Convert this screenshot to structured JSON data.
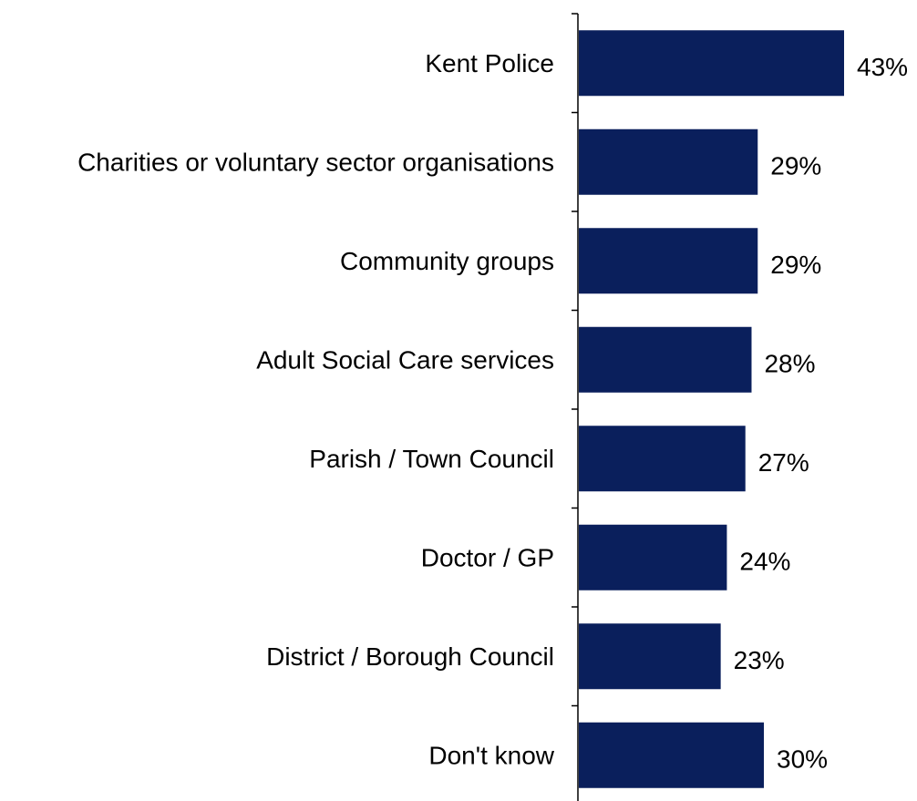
{
  "chart_data": {
    "type": "bar",
    "orientation": "horizontal",
    "categories": [
      "Kent Police",
      "Charities or voluntary sector organisations",
      "Community groups",
      "Adult Social Care services",
      "Parish / Town Council",
      "Doctor / GP",
      "District / Borough Council",
      "Don't know"
    ],
    "values": [
      43,
      29,
      29,
      28,
      27,
      24,
      23,
      30
    ],
    "value_labels": [
      "43%",
      "29%",
      "29%",
      "28%",
      "27%",
      "24%",
      "23%",
      "30%"
    ],
    "unit": "%",
    "xlim": [
      0,
      48
    ],
    "grid": false,
    "legend": "none",
    "bar_color": "#0a1f5c"
  }
}
